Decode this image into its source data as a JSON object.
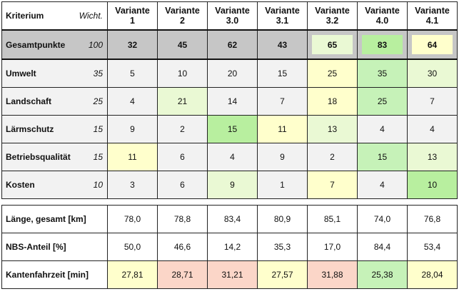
{
  "header": {
    "criterion": "Kriterium",
    "weight": "Wicht.",
    "variants": [
      {
        "line1": "Variante",
        "line2": "1"
      },
      {
        "line1": "Variante",
        "line2": "2"
      },
      {
        "line1": "Variante",
        "line2": "3.0"
      },
      {
        "line1": "Variante",
        "line2": "3.1"
      },
      {
        "line1": "Variante",
        "line2": "3.2"
      },
      {
        "line1": "Variante",
        "line2": "4.0"
      },
      {
        "line1": "Variante",
        "line2": "4.1"
      }
    ]
  },
  "rows": [
    {
      "label": "Gesamtpunkte",
      "weight": "100",
      "values": [
        "32",
        "45",
        "62",
        "43",
        "65",
        "83",
        "64"
      ]
    },
    {
      "label": "Umwelt",
      "weight": "35",
      "values": [
        "5",
        "10",
        "20",
        "15",
        "25",
        "35",
        "30"
      ]
    },
    {
      "label": "Landschaft",
      "weight": "25",
      "values": [
        "4",
        "21",
        "14",
        "7",
        "18",
        "25",
        "7"
      ]
    },
    {
      "label": "Lärmschutz",
      "weight": "15",
      "values": [
        "9",
        "2",
        "15",
        "11",
        "13",
        "4",
        "4"
      ]
    },
    {
      "label": "Betriebsqualität",
      "weight": "15",
      "values": [
        "11",
        "6",
        "4",
        "9",
        "2",
        "15",
        "13"
      ]
    },
    {
      "label": "Kosten",
      "weight": "10",
      "values": [
        "3",
        "6",
        "9",
        "1",
        "7",
        "4",
        "10"
      ]
    }
  ],
  "metrics": [
    {
      "label": "Länge, gesamt  [km]",
      "values": [
        "78,0",
        "78,8",
        "83,4",
        "80,9",
        "85,1",
        "74,0",
        "76,8"
      ]
    },
    {
      "label": "NBS-Anteil [%]",
      "values": [
        "50,0",
        "46,6",
        "14,2",
        "35,3",
        "17,0",
        "84,4",
        "53,4"
      ]
    },
    {
      "label": "Kantenfahrzeit [min]",
      "values": [
        "27,81",
        "28,71",
        "31,21",
        "27,57",
        "31,88",
        "25,38",
        "28,04"
      ]
    }
  ],
  "colors": {
    "grey": "#c6c6c6",
    "light": "#f2f2f2",
    "yellow": "#ffffcc",
    "light_green": "#eaf9d4",
    "green": "#c6f2b8",
    "pink": "#fbd6c8"
  }
}
